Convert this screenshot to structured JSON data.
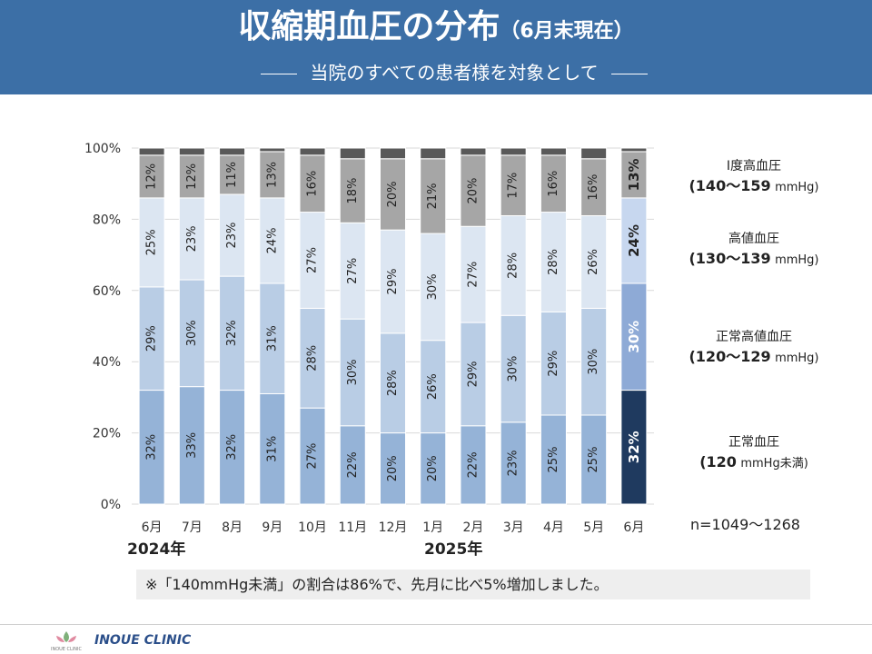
{
  "header": {
    "title": "収縮期血圧の分布",
    "title_suffix": "（6月末現在）",
    "subtitle": "当院のすべての患者様を対象として"
  },
  "legend": [
    {
      "name": "Ⅰ度高血圧",
      "range": "(140〜159",
      "unit": "mmHg)"
    },
    {
      "name": "高値血圧",
      "range": "(130〜139",
      "unit": "mmHg)"
    },
    {
      "name": "正常高値血圧",
      "range": "(120〜129",
      "unit": "mmHg)"
    },
    {
      "name": "正常血圧",
      "range": "(120",
      "unit": "mmHg未満)"
    }
  ],
  "n_label": "n=1049〜1268",
  "years": [
    "2024年",
    "2025年"
  ],
  "note": "※「140mmHg未満」の割合は86%で、先月に比べ5%増加しました。",
  "clinic_name": "INOUE CLINIC",
  "logo_text": "INOUE CLINIC",
  "colors": {
    "header": "#3c6fa6",
    "normal": "#95b3d7",
    "high_normal": "#b9cde5",
    "elevated": "#dce6f2",
    "grade1": "#a6a6a6",
    "top": "#595959",
    "hl_normal": "#1f3a5f",
    "hl_high_normal": "#8eaad6",
    "hl_elevated": "#c7d7ef"
  },
  "chart_data": {
    "type": "bar",
    "stacked": true,
    "percent": true,
    "categories": [
      "6月",
      "7月",
      "8月",
      "9月",
      "10月",
      "11月",
      "12月",
      "1月",
      "2月",
      "3月",
      "4月",
      "5月",
      "6月"
    ],
    "series": [
      {
        "name": "正常血圧",
        "values": [
          32,
          33,
          32,
          31,
          27,
          22,
          20,
          20,
          22,
          23,
          25,
          25,
          32
        ]
      },
      {
        "name": "正常高値血圧",
        "values": [
          29,
          30,
          32,
          31,
          28,
          30,
          28,
          26,
          29,
          30,
          29,
          30,
          30
        ]
      },
      {
        "name": "高値血圧",
        "values": [
          25,
          23,
          23,
          24,
          27,
          27,
          29,
          30,
          27,
          28,
          28,
          26,
          24
        ]
      },
      {
        "name": "Ⅰ度高血圧",
        "values": [
          12,
          12,
          11,
          13,
          16,
          18,
          20,
          21,
          20,
          17,
          16,
          16,
          13
        ]
      },
      {
        "values": [
          2,
          2,
          2,
          1,
          2,
          3,
          3,
          3,
          2,
          2,
          2,
          3,
          1
        ]
      }
    ],
    "yticks": [
      "0%",
      "20%",
      "40%",
      "60%",
      "80%",
      "100%"
    ],
    "ylim": [
      0,
      100
    ],
    "highlight_index": 12
  }
}
